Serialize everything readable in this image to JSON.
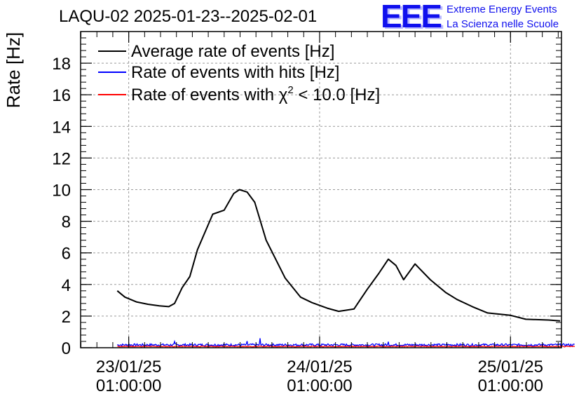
{
  "logo": {
    "mark": "EEE",
    "line1": "Extreme Energy Events",
    "line2": "La Scienza nelle Scuole"
  },
  "chart_data": {
    "type": "line",
    "title": "LAQU-02 2025-01-23--2025-02-01",
    "ylabel": "Rate [Hz]",
    "xlabel": "",
    "ylim": [
      0,
      20
    ],
    "yticks": [
      0,
      2,
      4,
      6,
      8,
      10,
      12,
      14,
      16,
      18
    ],
    "x_unit": "days",
    "xlim": [
      -0.252,
      2.267
    ],
    "xticks": [
      {
        "x": 0,
        "line1": "23/01/25",
        "line2": "01:00:00"
      },
      {
        "x": 1,
        "line1": "24/01/25",
        "line2": "01:00:00"
      },
      {
        "x": 2,
        "line1": "25/01/25",
        "line2": "01:00:00"
      }
    ],
    "grid": true,
    "legend_position": "top-left",
    "series": [
      {
        "name": "Average rate of events [Hz]",
        "color": "#000000",
        "x": [
          -0.06,
          -0.02,
          0.04,
          0.1,
          0.16,
          0.21,
          0.24,
          0.28,
          0.32,
          0.36,
          0.44,
          0.5,
          0.55,
          0.58,
          0.62,
          0.66,
          0.72,
          0.82,
          0.9,
          0.96,
          1.04,
          1.1,
          1.18,
          1.25,
          1.31,
          1.36,
          1.4,
          1.44,
          1.5,
          1.58,
          1.66,
          1.72,
          1.8,
          1.88,
          2.0,
          2.08,
          2.2,
          2.26
        ],
        "y": [
          3.6,
          3.2,
          2.9,
          2.75,
          2.65,
          2.6,
          2.8,
          3.8,
          4.5,
          6.2,
          8.45,
          8.7,
          9.75,
          10.0,
          9.85,
          9.2,
          6.8,
          4.4,
          3.2,
          2.85,
          2.5,
          2.3,
          2.45,
          3.7,
          4.7,
          5.6,
          5.2,
          4.3,
          5.3,
          4.3,
          3.5,
          3.05,
          2.6,
          2.2,
          2.05,
          1.8,
          1.75,
          1.7
        ]
      },
      {
        "name": "Rate of events with hits [Hz]",
        "color": "#0000ff",
        "x_range": [
          -0.06,
          2.34
        ],
        "baseline": 0.18,
        "spikes": [
          [
            0.24,
            0.4
          ],
          [
            0.62,
            0.42
          ],
          [
            0.69,
            0.6
          ],
          [
            1.36,
            0.38
          ]
        ]
      },
      {
        "name": "Rate of events with χ² < 10.0 [Hz]",
        "legend_parts": [
          "Rate of events with χ",
          "2",
          " < 10.0 [Hz]"
        ],
        "color": "#ff0000",
        "x_range": [
          -0.06,
          2.34
        ],
        "baseline": 0.08
      }
    ]
  }
}
